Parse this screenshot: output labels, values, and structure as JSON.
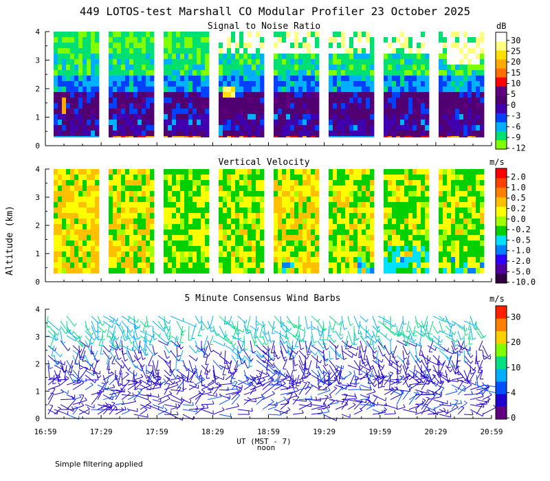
{
  "title": "449 LOTOS-test Marshall CO Modular Profiler 23 October 2025",
  "y_axis_label": "Altitude (km)",
  "x_axis_label": "UT  (MST - 7)",
  "noon_label": "noon",
  "footnote": "Simple filtering applied",
  "colors": {
    "snr": [
      "#80ff00",
      "#00e070",
      "#00b0ff",
      "#0040ff",
      "#4000b0",
      "#500070",
      "#600080",
      "#ff0000",
      "#ff7000",
      "#ffaa00",
      "#ffe000",
      "#ffff80",
      "#ffffff"
    ],
    "vv": [
      "#300040",
      "#5000a0",
      "#3000ff",
      "#0080ff",
      "#00e0ff",
      "#00d000",
      "#a0ff00",
      "#ffff00",
      "#ffc000",
      "#ff8000",
      "#ff4000",
      "#ff0000"
    ],
    "wind": [
      "#600080",
      "#2000d0",
      "#0050ff",
      "#00b0ff",
      "#00e080",
      "#80ff00",
      "#ffd000",
      "#ff8000",
      "#ff2000"
    ]
  },
  "chart_data": [
    {
      "type": "heatmap",
      "name": "snr",
      "title": "Signal to Noise Ratio",
      "colorbar_unit": "dB",
      "colorbar_labels": [
        "30",
        "25",
        "20",
        "15",
        "10",
        "5",
        "0",
        "-3",
        "-6",
        "-9",
        "-12"
      ],
      "x_ticks": [
        "16:59",
        "17:29",
        "17:59",
        "18:29",
        "18:59",
        "19:29",
        "19:59",
        "20:29",
        "20:59"
      ],
      "y_ticks": [
        "0",
        "1",
        "2",
        "3",
        "4"
      ],
      "ylim": [
        0,
        4
      ],
      "xlim_minutes": [
        0,
        240
      ],
      "data_altitude_range_km": [
        0.3,
        4.0
      ]
    },
    {
      "type": "heatmap",
      "name": "vertical-velocity",
      "title": "Vertical Velocity",
      "colorbar_unit": "m/s",
      "colorbar_labels": [
        "2.0",
        "1.0",
        "0.5",
        "0.2",
        "0.0",
        "-0.2",
        "-0.5",
        "-1.0",
        "-2.0",
        "-5.0",
        "-10.0"
      ],
      "y_ticks": [
        "0",
        "1",
        "2",
        "3",
        "4"
      ],
      "ylim": [
        0,
        4
      ],
      "data_altitude_range_km": [
        0.3,
        4.0
      ]
    },
    {
      "type": "wind_barbs",
      "name": "wind",
      "title": "5 Minute Consensus Wind Barbs",
      "colorbar_unit": "m/s",
      "colorbar_labels": [
        "30",
        "20",
        "10",
        "4",
        "0"
      ],
      "y_ticks": [
        "0",
        "1",
        "2",
        "3",
        "4"
      ],
      "ylim": [
        0,
        4
      ]
    }
  ]
}
